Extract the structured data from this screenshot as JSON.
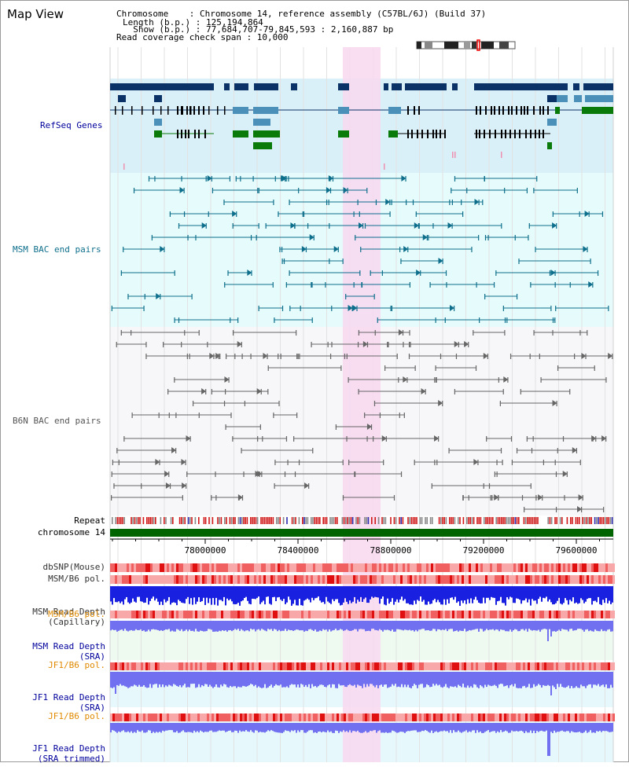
{
  "page": {
    "title": "Map View"
  },
  "info": {
    "line1": "Chromosome    : Chromosome 14, reference assembly (C57BL/6J) (Build 37)",
    "line2": "Length (b.p.) : 125,194,864",
    "line3": "  Show (b.p.) : 77,684,707-79,845,593 : 2,160,887 bp",
    "line4": "Read coverage check span : 10,000"
  },
  "tracks": {
    "refseq": {
      "label": "RefSeq Genes",
      "color": "#00009c"
    },
    "msm_bac": {
      "label": "MSM BAC end pairs",
      "color": "#0e6f8c"
    },
    "b6n_bac": {
      "label": "B6N BAC end pairs",
      "color": "#555555"
    },
    "repeat": {
      "label": "Repeat"
    },
    "chromosome": {
      "label": "chromosome 14",
      "color": "#006400"
    },
    "dbsnp": {
      "label": "dbSNP(Mouse)"
    },
    "msm_b6_pol": {
      "label": "MSM/B6 pol."
    },
    "msm_depth_cap": {
      "label1": "MSM Read Depth",
      "label2": "(Capillary)"
    },
    "msm_b6_pol2": {
      "label": "MSM/B6 pol."
    },
    "msm_depth_sra": {
      "label1": "MSM Read Depth",
      "label2": "(SRA)"
    },
    "jf1_b6_pol": {
      "label": "JF1/B6 pol."
    },
    "jf1_depth_sra": {
      "label1": "JF1 Read Depth",
      "label2": "(SRA)"
    },
    "jf1_b6_pol2": {
      "label": "JF1/B6 pol."
    },
    "jf1_depth_trim": {
      "label1": "JF1 Read Depth",
      "label2": "(SRA trimmed)"
    }
  },
  "axis": {
    "ticks": [
      "78000000",
      "78400000",
      "78800000",
      "79200000",
      "79600000"
    ]
  },
  "colors": {
    "refseq_bg": "#d9f0f9",
    "msm_bg": "#e6fbfb",
    "b6n_bg": "#f7f7f9",
    "highlight": "#f8d8f0",
    "gene_dark": "#0a3266",
    "gene_mid": "#4a90b8",
    "gene_green": "#0a7a0a",
    "polymorphism": "#f07070",
    "depth_blue": "#1a20e0",
    "depth_light": "#7070f0"
  }
}
